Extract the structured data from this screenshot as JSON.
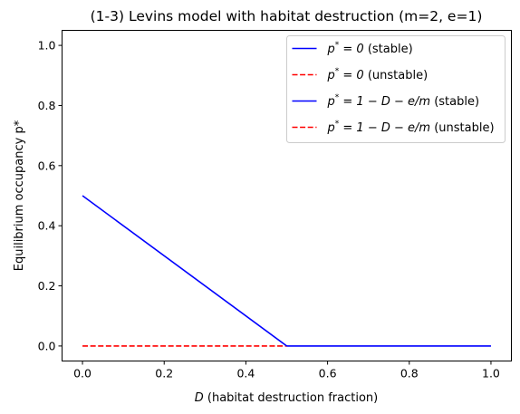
{
  "chart_data": {
    "type": "line",
    "title": "(1-3) Levins model with habitat destruction (m=2, e=1)",
    "xlabel": {
      "var": "D",
      "rest": " (habitat destruction fraction)"
    },
    "ylabel": "Equilibrium occupancy p*",
    "xlim": [
      -0.05,
      1.05
    ],
    "ylim": [
      -0.05,
      1.05
    ],
    "xticks": [
      0.0,
      0.2,
      0.4,
      0.6,
      0.8,
      1.0
    ],
    "xtick_labels": [
      "0.0",
      "0.2",
      "0.4",
      "0.6",
      "0.8",
      "1.0"
    ],
    "yticks": [
      0.0,
      0.2,
      0.4,
      0.6,
      0.8,
      1.0
    ],
    "ytick_labels": [
      "0.0",
      "0.2",
      "0.4",
      "0.6",
      "0.8",
      "1.0"
    ],
    "grid": false,
    "legend_position": "top-right",
    "series": [
      {
        "name": "p* = 0 (stable)",
        "label_parts": {
          "base": "p",
          "sup": "*",
          "eq": " = 0 ",
          "tag": "(stable)"
        },
        "color": "#0000ff",
        "dashed": false,
        "x": [
          0.5,
          1.0
        ],
        "y": [
          0.0,
          0.0
        ]
      },
      {
        "name": "p* = 0 (unstable)",
        "label_parts": {
          "base": "p",
          "sup": "*",
          "eq": " = 0 ",
          "tag": "(unstable)"
        },
        "color": "#ff0000",
        "dashed": true,
        "x": [
          0.0,
          0.5
        ],
        "y": [
          0.0,
          0.0
        ]
      },
      {
        "name": "p* = 1 − D − e/m (stable)",
        "label_parts": {
          "base": "p",
          "sup": "*",
          "eq": " = 1 − D − e/m ",
          "tag": "(stable)"
        },
        "color": "#0000ff",
        "dashed": false,
        "x": [
          0.0,
          0.5
        ],
        "y": [
          0.5,
          0.0
        ]
      },
      {
        "name": "p* = 1 − D − e/m (unstable)",
        "label_parts": {
          "base": "p",
          "sup": "*",
          "eq": " = 1 − D − e/m ",
          "tag": "(unstable)"
        },
        "color": "#ff0000",
        "dashed": true,
        "x": [],
        "y": []
      }
    ]
  }
}
